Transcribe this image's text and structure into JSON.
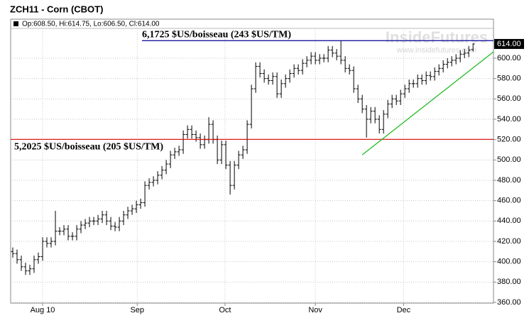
{
  "chart_data": {
    "type": "ohlc",
    "title": "ZCH11 - Corn (CBOT)",
    "ohlc_header": "Op:608.50, Hi:614.75, Lo:606.50, Cl:614.00",
    "watermark": "InsideFutures",
    "watermark_url": "www.insidefutures.com",
    "color": "#000000",
    "open": [
      410,
      408,
      402,
      395,
      391,
      393,
      402,
      405,
      420,
      418,
      420,
      430,
      430,
      432,
      425,
      425,
      432,
      436,
      438,
      440,
      440,
      442,
      446,
      440,
      435,
      434,
      440,
      446,
      450,
      452,
      456,
      458,
      475,
      478,
      480,
      485,
      490,
      496,
      505,
      508,
      510,
      525,
      530,
      525,
      522,
      515,
      520,
      535,
      520,
      500,
      515,
      495,
      475,
      495,
      505,
      510,
      535,
      570,
      592,
      585,
      580,
      578,
      582,
      565,
      575,
      580,
      585,
      590,
      588,
      595,
      598,
      602,
      598,
      600,
      600,
      608,
      605,
      602,
      598,
      590,
      588,
      570,
      560,
      550,
      540,
      548,
      540,
      530,
      545,
      555,
      560,
      558,
      565,
      570,
      575,
      575,
      580,
      578,
      583,
      582,
      587,
      590,
      594,
      596,
      598,
      600,
      604,
      605,
      608.5
    ],
    "high": [
      414,
      412,
      406,
      399,
      397,
      406,
      409,
      424,
      424,
      424,
      450,
      434,
      436,
      436,
      429,
      436,
      440,
      442,
      444,
      444,
      446,
      450,
      450,
      444,
      439,
      444,
      450,
      454,
      456,
      460,
      462,
      479,
      482,
      484,
      489,
      494,
      500,
      509,
      512,
      514,
      529,
      534,
      534,
      529,
      526,
      524,
      542,
      539,
      524,
      519,
      519,
      499,
      499,
      509,
      514,
      539,
      574,
      596,
      596,
      589,
      584,
      586,
      586,
      579,
      584,
      589,
      594,
      594,
      599,
      602,
      606,
      606,
      604,
      604,
      612,
      612,
      609,
      617.25,
      602,
      594,
      592,
      574,
      564,
      554,
      552,
      552,
      544,
      549,
      559,
      564,
      564,
      569,
      574,
      579,
      579,
      584,
      584,
      587,
      587,
      591,
      594,
      598,
      600,
      602,
      604,
      608,
      609,
      612,
      614.75
    ],
    "low": [
      404,
      398,
      391,
      387,
      387,
      389,
      398,
      401,
      414,
      414,
      416,
      426,
      426,
      421,
      421,
      421,
      428,
      432,
      434,
      436,
      436,
      438,
      436,
      431,
      430,
      430,
      436,
      442,
      446,
      448,
      452,
      454,
      471,
      474,
      476,
      481,
      486,
      492,
      501,
      504,
      506,
      521,
      521,
      518,
      511,
      511,
      516,
      516,
      496,
      496,
      491,
      466,
      471,
      491,
      501,
      506,
      531,
      566,
      581,
      576,
      574,
      574,
      561,
      561,
      571,
      576,
      581,
      584,
      584,
      591,
      594,
      594,
      594,
      596,
      596,
      601,
      598,
      594,
      586,
      584,
      566,
      556,
      546,
      522,
      536,
      536,
      526,
      526,
      541,
      551,
      554,
      554,
      561,
      566,
      571,
      571,
      574,
      574,
      578,
      578,
      583,
      586,
      590,
      592,
      594,
      596,
      600,
      601,
      606.5
    ],
    "close": [
      408,
      402,
      395,
      391,
      393,
      402,
      405,
      420,
      418,
      420,
      430,
      430,
      432,
      425,
      425,
      432,
      436,
      438,
      440,
      440,
      442,
      446,
      440,
      435,
      434,
      440,
      446,
      450,
      452,
      456,
      458,
      475,
      478,
      480,
      485,
      490,
      496,
      505,
      508,
      510,
      525,
      530,
      525,
      522,
      515,
      520,
      535,
      520,
      500,
      515,
      495,
      475,
      495,
      505,
      510,
      535,
      570,
      592,
      585,
      580,
      578,
      582,
      565,
      575,
      580,
      585,
      590,
      588,
      595,
      598,
      602,
      598,
      600,
      600,
      608,
      605,
      602,
      598,
      590,
      588,
      570,
      560,
      550,
      540,
      548,
      540,
      530,
      545,
      555,
      560,
      558,
      565,
      570,
      575,
      575,
      580,
      578,
      583,
      582,
      587,
      590,
      594,
      596,
      598,
      600,
      604,
      605,
      608,
      614
    ],
    "last_price": {
      "value": 614,
      "label": "614.00"
    },
    "xlim": [
      -0.5,
      112.8
    ],
    "xticks": [
      {
        "value": 7,
        "label": "Aug 10"
      },
      {
        "value": 29.2,
        "label": "Sep"
      },
      {
        "value": 49.8,
        "label": "Oct"
      },
      {
        "value": 71,
        "label": "Nov"
      },
      {
        "value": 91.7,
        "label": "Dec"
      }
    ],
    "ylim": [
      359.3,
      629.3
    ],
    "yticks": [
      {
        "value": 360,
        "label": "360.00"
      },
      {
        "value": 380,
        "label": "380.00"
      },
      {
        "value": 400,
        "label": "400.00"
      },
      {
        "value": 420,
        "label": "420.00"
      },
      {
        "value": 440,
        "label": "440.00"
      },
      {
        "value": 460,
        "label": "460.00"
      },
      {
        "value": 480,
        "label": "480.00"
      },
      {
        "value": 500,
        "label": "500.00"
      },
      {
        "value": 520,
        "label": "520.00"
      },
      {
        "value": 540,
        "label": "540.00"
      },
      {
        "value": 560,
        "label": "560.00"
      },
      {
        "value": 580,
        "label": "580.00"
      },
      {
        "value": 600,
        "label": "600.00"
      }
    ],
    "grid": true,
    "hlines": [
      {
        "label": "5,2025 $US/boisseau (205 $US/TM)",
        "value": 520.25,
        "color": "#dd0000"
      },
      {
        "label": "6,1725 $US/boisseau (243 $US/TM)",
        "value": 617.25,
        "color": "#000099"
      }
    ],
    "trendline": {
      "x": [
        82,
        112.8
      ],
      "y": [
        505,
        606.3
      ],
      "color": "#22bb22"
    }
  }
}
